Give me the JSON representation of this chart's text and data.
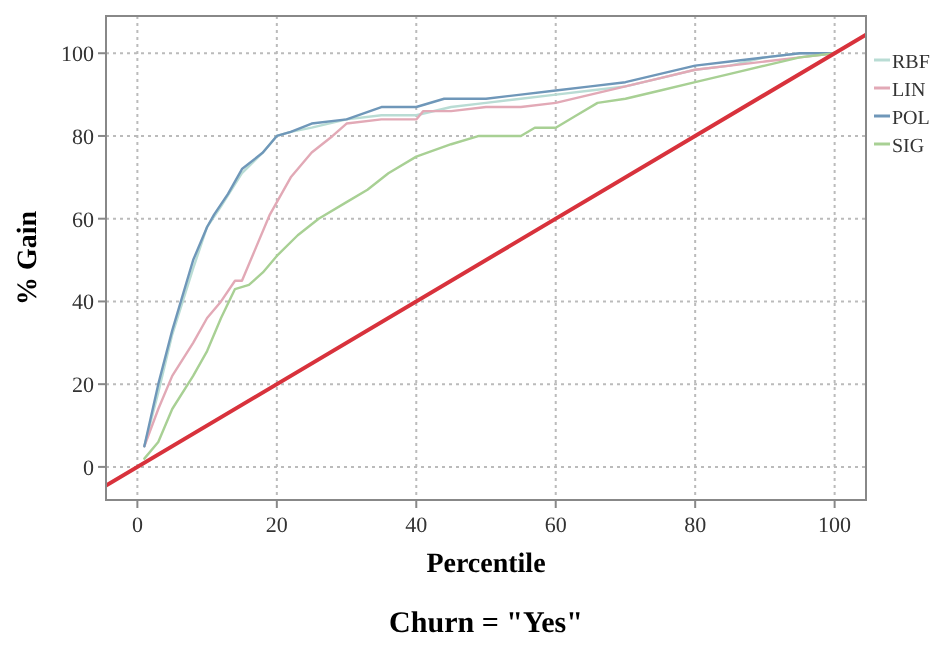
{
  "chart_data": {
    "type": "line",
    "title": "Churn = \"Yes\"",
    "xlabel": "Percentile",
    "ylabel": "% Gain",
    "xlim": [
      -4.5,
      104.5
    ],
    "ylim": [
      -8,
      109
    ],
    "xticks": [
      0,
      20,
      40,
      60,
      80,
      100
    ],
    "yticks": [
      0,
      20,
      40,
      60,
      80,
      100
    ],
    "grid": true,
    "legend": "right",
    "marker": "none",
    "series": [
      {
        "name": "RBF",
        "color": "#b9dcd4",
        "x": [
          1,
          3,
          5,
          8,
          10,
          12,
          15,
          18,
          20,
          22,
          25,
          30,
          35,
          40,
          45,
          50,
          55,
          60,
          65,
          70,
          75,
          80,
          85,
          90,
          95,
          100
        ],
        "values": [
          5,
          18,
          32,
          48,
          58,
          63,
          71,
          76,
          80,
          81,
          82,
          84,
          85,
          85,
          87,
          88,
          89,
          90,
          91,
          92,
          94,
          96,
          97,
          99,
          100,
          100
        ]
      },
      {
        "name": "LIN",
        "color": "#e2a9b6",
        "x": [
          1,
          3,
          5,
          8,
          10,
          12,
          14,
          15,
          17,
          19,
          22,
          25,
          28,
          30,
          35,
          40,
          41,
          45,
          50,
          55,
          60,
          65,
          70,
          75,
          80,
          85,
          90,
          95,
          100
        ],
        "values": [
          5,
          14,
          22,
          30,
          36,
          40,
          45,
          45,
          53,
          61,
          70,
          76,
          80,
          83,
          84,
          84,
          86,
          86,
          87,
          87,
          88,
          90,
          92,
          94,
          96,
          97,
          98,
          99,
          100
        ]
      },
      {
        "name": "POL",
        "color": "#6f97b9",
        "x": [
          1,
          3,
          5,
          8,
          10,
          11,
          13,
          15,
          18,
          20,
          22,
          25,
          30,
          35,
          40,
          44,
          50,
          55,
          60,
          65,
          70,
          75,
          80,
          85,
          90,
          95,
          100
        ],
        "values": [
          5,
          20,
          33,
          50,
          58,
          61,
          66,
          72,
          76,
          80,
          81,
          83,
          84,
          87,
          87,
          89,
          89,
          90,
          91,
          92,
          93,
          95,
          97,
          98,
          99,
          100,
          100
        ]
      },
      {
        "name": "SIG",
        "color": "#a8d094",
        "x": [
          1,
          3,
          5,
          8,
          10,
          12,
          14,
          16,
          18,
          20,
          23,
          26,
          30,
          33,
          36,
          40,
          45,
          49,
          52,
          55,
          57,
          60,
          63,
          66,
          70,
          75,
          80,
          85,
          90,
          95,
          100
        ],
        "values": [
          2,
          6,
          14,
          22,
          28,
          36,
          43,
          44,
          47,
          51,
          56,
          60,
          64,
          67,
          71,
          75,
          78,
          80,
          80,
          80,
          82,
          82,
          85,
          88,
          89,
          91,
          93,
          95,
          97,
          99,
          100
        ]
      },
      {
        "type": "line",
        "color": "#d8323c",
        "x": [
          -4.5,
          104.5
        ],
        "values": [
          -4.5,
          104.5
        ]
      }
    ]
  }
}
